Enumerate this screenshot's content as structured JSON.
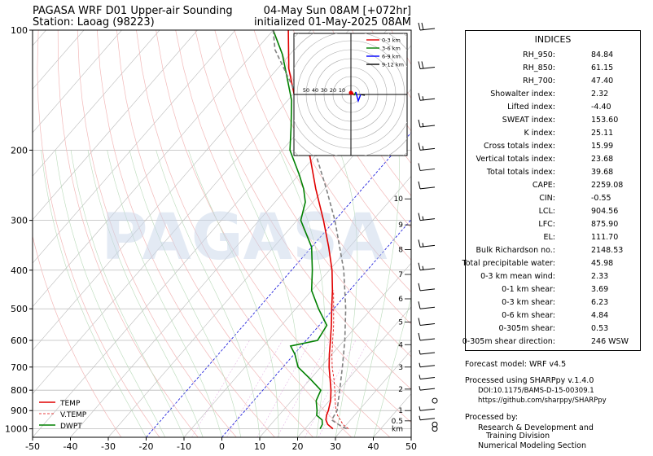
{
  "header": {
    "title_left": "PAGASA WRF D01 Upper-air Sounding",
    "station": "Station: Laoag (98223)",
    "valid_time": "04-May Sun 08AM [+072hr]",
    "init_time": "initialized 01-May-2025 08AM"
  },
  "watermark": "PAGASA",
  "chart_data": {
    "type": "line",
    "subtype": "skew-T log-P sounding",
    "x_axis": {
      "label": "",
      "range": [
        -50,
        50
      ],
      "ticks": [
        -50,
        -40,
        -30,
        -20,
        -10,
        0,
        10,
        20,
        30,
        40,
        50
      ]
    },
    "y_axis": {
      "label": "",
      "scale": "log",
      "range": [
        1050,
        100
      ],
      "ticks": [
        1000,
        900,
        800,
        700,
        600,
        500,
        400,
        300,
        200,
        100
      ]
    },
    "height_labels_km": {
      "unit": "km",
      "levels": [
        {
          "km": "0.5",
          "p": 955
        },
        {
          "km": "1",
          "p": 900
        },
        {
          "km": "2",
          "p": 795
        },
        {
          "km": "3",
          "p": 700
        },
        {
          "km": "4",
          "p": 615
        },
        {
          "km": "5",
          "p": 540
        },
        {
          "km": "6",
          "p": 472
        },
        {
          "km": "7",
          "p": 410
        },
        {
          "km": "8",
          "p": 355
        },
        {
          "km": "9",
          "p": 308
        },
        {
          "km": "10",
          "p": 265
        }
      ]
    },
    "legend": {
      "position": "lower-left",
      "entries": [
        "TEMP",
        "V.TEMP",
        "DWPT"
      ]
    },
    "series": [
      {
        "name": "TEMP",
        "color": "#e00000",
        "style": "solid",
        "points": [
          [
            1000,
            27.4
          ],
          [
            975,
            25.0
          ],
          [
            950,
            23.5
          ],
          [
            925,
            22.6
          ],
          [
            900,
            22.0
          ],
          [
            850,
            20.3
          ],
          [
            800,
            18.0
          ],
          [
            750,
            15.2
          ],
          [
            700,
            12.2
          ],
          [
            650,
            9.3
          ],
          [
            600,
            6.4
          ],
          [
            550,
            3.2
          ],
          [
            500,
            -0.5
          ],
          [
            450,
            -4.5
          ],
          [
            400,
            -9.3
          ],
          [
            350,
            -15.5
          ],
          [
            300,
            -23.0
          ],
          [
            250,
            -32.3
          ],
          [
            200,
            -43.0
          ],
          [
            175,
            -50.0
          ],
          [
            150,
            -58.0
          ],
          [
            125,
            -67.0
          ],
          [
            100,
            -76.0
          ]
        ]
      },
      {
        "name": "V.TEMP",
        "color": "#e00000",
        "style": "dashed",
        "points": [
          [
            1000,
            31.5
          ],
          [
            975,
            29.0
          ],
          [
            950,
            27.3
          ],
          [
            925,
            25.5
          ],
          [
            900,
            24.0
          ],
          [
            850,
            21.5
          ],
          [
            800,
            19.0
          ],
          [
            750,
            16.2
          ],
          [
            700,
            13.0
          ],
          [
            650,
            10.0
          ],
          [
            600,
            7.0
          ],
          [
            550,
            3.8
          ],
          [
            500,
            0.0
          ],
          [
            450,
            -4.2
          ]
        ]
      },
      {
        "name": "DWPT",
        "color": "#008000",
        "style": "solid",
        "points": [
          [
            1000,
            24.0
          ],
          [
            975,
            23.6
          ],
          [
            950,
            22.5
          ],
          [
            925,
            20.0
          ],
          [
            900,
            19.0
          ],
          [
            850,
            16.5
          ],
          [
            800,
            15.3
          ],
          [
            750,
            10.0
          ],
          [
            700,
            4.0
          ],
          [
            650,
            0.2
          ],
          [
            620,
            -2.8
          ],
          [
            600,
            3.0
          ],
          [
            550,
            2.0
          ],
          [
            500,
            -4.0
          ],
          [
            450,
            -10.0
          ],
          [
            400,
            -14.5
          ],
          [
            350,
            -20.0
          ],
          [
            300,
            -29.0
          ],
          [
            270,
            -32.0
          ],
          [
            250,
            -35.5
          ],
          [
            230,
            -40.0
          ],
          [
            200,
            -48.0
          ],
          [
            175,
            -53.0
          ],
          [
            150,
            -59.0
          ],
          [
            130,
            -66.0
          ],
          [
            115,
            -72.0
          ],
          [
            100,
            -80.0
          ]
        ]
      },
      {
        "name": "parcel",
        "color": "#808080",
        "style": "dashed",
        "points": [
          [
            1000,
            31.0
          ],
          [
            975,
            27.8
          ],
          [
            950,
            25.0
          ],
          [
            900,
            24.3
          ],
          [
            800,
            20.3
          ],
          [
            700,
            15.7
          ],
          [
            600,
            10.2
          ],
          [
            500,
            3.2
          ],
          [
            400,
            -6.2
          ],
          [
            300,
            -20.0
          ],
          [
            250,
            -29.5
          ],
          [
            200,
            -41.5
          ],
          [
            150,
            -57.0
          ],
          [
            112,
            -75.0
          ],
          [
            100,
            -80.0
          ]
        ]
      }
    ],
    "wind_barbs": [
      {
        "p": 1000,
        "speed_kt": 0
      },
      {
        "p": 975,
        "speed_kt": 0
      },
      {
        "p": 950,
        "speed_kt": 5
      },
      {
        "p": 900,
        "speed_kt": 5
      },
      {
        "p": 850,
        "speed_kt": 0
      },
      {
        "p": 800,
        "speed_kt": 5
      },
      {
        "p": 750,
        "speed_kt": 5
      },
      {
        "p": 700,
        "speed_kt": 5
      },
      {
        "p": 650,
        "speed_kt": 5
      },
      {
        "p": 600,
        "speed_kt": 10
      },
      {
        "p": 550,
        "speed_kt": 10
      },
      {
        "p": 500,
        "speed_kt": 10
      },
      {
        "p": 450,
        "speed_kt": 10
      },
      {
        "p": 400,
        "speed_kt": 15
      },
      {
        "p": 350,
        "speed_kt": 15
      },
      {
        "p": 300,
        "speed_kt": 15
      },
      {
        "p": 250,
        "speed_kt": 10
      },
      {
        "p": 225,
        "speed_kt": 10
      },
      {
        "p": 200,
        "speed_kt": 15
      },
      {
        "p": 175,
        "speed_kt": 15
      },
      {
        "p": 150,
        "speed_kt": 15
      },
      {
        "p": 125,
        "speed_kt": 20
      },
      {
        "p": 100,
        "speed_kt": 20
      }
    ],
    "hodograph": {
      "ring_labels": [
        "50",
        "40",
        "30",
        "20",
        "10"
      ],
      "legend": [
        "0-3 km",
        "3-6 km",
        "6-9 km",
        "9-12 km"
      ],
      "legend_colors": [
        "#e00000",
        "#008000",
        "#0000ff",
        "#000000"
      ]
    }
  },
  "indices": {
    "title": "INDICES",
    "rows": [
      {
        "label": "RH_950:",
        "value": "84.84"
      },
      {
        "label": "RH_850:",
        "value": "61.15"
      },
      {
        "label": "RH_700:",
        "value": "47.40"
      },
      {
        "label": "Showalter index:",
        "value": "2.32"
      },
      {
        "label": "Lifted index:",
        "value": "-4.40"
      },
      {
        "label": "SWEAT index:",
        "value": "153.60"
      },
      {
        "label": "K index:",
        "value": "25.11"
      },
      {
        "label": "Cross totals index:",
        "value": "15.99"
      },
      {
        "label": "Vertical totals index:",
        "value": "23.68"
      },
      {
        "label": "Total totals index:",
        "value": "39.68"
      },
      {
        "label": "CAPE:",
        "value": "2259.08"
      },
      {
        "label": "CIN:",
        "value": "-0.55"
      },
      {
        "label": "LCL:",
        "value": "904.56"
      },
      {
        "label": "LFC:",
        "value": "875.90"
      },
      {
        "label": "EL:",
        "value": "111.70"
      },
      {
        "label": "Bulk Richardson no.:",
        "value": "2148.53"
      },
      {
        "label": "Total precipitable water:",
        "value": "45.98"
      },
      {
        "label": "0-3 km mean wind:",
        "value": "2.33"
      },
      {
        "label": "0-1 km shear:",
        "value": "3.69"
      },
      {
        "label": "0-3 km shear:",
        "value": "6.23"
      },
      {
        "label": "0-6 km shear:",
        "value": "4.84"
      },
      {
        "label": "0-305m shear:",
        "value": "0.53"
      },
      {
        "label": "0-305m shear direction:",
        "value": "246 WSW"
      }
    ]
  },
  "footer": {
    "forecast_model": "Forecast model: WRF v4.5",
    "processed_using": "Processed using SHARPpy v.1.4.0",
    "doi": "DOI:10.1175/BAMS-D-15-00309.1",
    "url": "https://github.com/sharppy/SHARPpy",
    "processed_by": "Processed by:",
    "division_line1": "Research & Development and",
    "division_line2": "Training Division",
    "division_line3": "Numerical Modeling Section"
  }
}
